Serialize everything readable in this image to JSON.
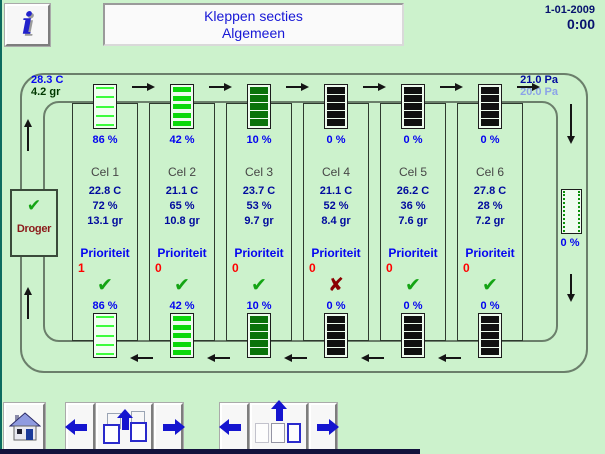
{
  "header": {
    "info_label": "i",
    "title_line1": "Kleppen secties",
    "title_line2": "Algemeen",
    "date": "1-01-2009",
    "time": "0:00"
  },
  "colors": {
    "background": "#ccf2cc",
    "duct_line": "#6b7f6b",
    "label_blue": "#0404f0",
    "value_blue": "#000a9e",
    "pressure_setpoint_blue": "#8ba3e8",
    "priority_red": "#ff0000",
    "ok_green": "#14a414",
    "alarm_red": "#8b0000",
    "dryer_text_red": "#8b1a1a"
  },
  "diagram": {
    "supply": {
      "temp": "28.3 C",
      "moisture": "4.2 gr"
    },
    "pressure": {
      "actual": "21.0 Pa",
      "setpoint": "20.0 Pa"
    },
    "dryer": {
      "label": "Droger",
      "status_icon": "check"
    },
    "bypass_valve": {
      "pct": "0 %"
    },
    "priority_label": "Prioriteit",
    "cells": [
      {
        "name": "Cel 1",
        "temp": "22.8 C",
        "humidity": "72 %",
        "moisture": "13.1 gr",
        "priority": "1",
        "status_icon": "check",
        "valve_pct_top": "86 %",
        "valve_pct_bottom": "86 %",
        "valve_slat_color": "#3dfc3d",
        "valve_slat_height": 2,
        "valve_bg": "#f2fff2"
      },
      {
        "name": "Cel 2",
        "temp": "21.1 C",
        "humidity": "65 %",
        "moisture": "10.8 gr",
        "priority": "0",
        "status_icon": "check",
        "valve_pct_top": "42 %",
        "valve_pct_bottom": "42 %",
        "valve_slat_color": "#0bd80b",
        "valve_slat_height": 5,
        "valve_bg": "#eefbee"
      },
      {
        "name": "Cel 3",
        "temp": "23.7 C",
        "humidity": "53 %",
        "moisture": "9.7 gr",
        "priority": "0",
        "status_icon": "check",
        "valve_pct_top": "10 %",
        "valve_pct_bottom": "10 %",
        "valve_slat_color": "#0a730a",
        "valve_slat_height": 7,
        "valve_bg": "#eefbee"
      },
      {
        "name": "Cel 4",
        "temp": "21.1 C",
        "humidity": "52 %",
        "moisture": "8.4 gr",
        "priority": "0",
        "status_icon": "cross",
        "valve_pct_top": "0 %",
        "valve_pct_bottom": "0 %",
        "valve_slat_color": "#101010",
        "valve_slat_height": 7,
        "valve_bg": "#eefbee"
      },
      {
        "name": "Cel 5",
        "temp": "26.2 C",
        "humidity": "36 %",
        "moisture": "7.6 gr",
        "priority": "0",
        "status_icon": "check",
        "valve_pct_top": "0 %",
        "valve_pct_bottom": "0 %",
        "valve_slat_color": "#101010",
        "valve_slat_height": 7,
        "valve_bg": "#eefbee"
      },
      {
        "name": "Cel 6",
        "temp": "27.8 C",
        "humidity": "28 %",
        "moisture": "7.2 gr",
        "priority": "0",
        "status_icon": "check",
        "valve_pct_top": "0 %",
        "valve_pct_bottom": "0 %",
        "valve_slat_color": "#101010",
        "valve_slat_height": 7,
        "valve_bg": "#eefbee"
      }
    ]
  },
  "footer": {
    "icons": [
      "home-icon",
      "arrow-left-icon",
      "screens-stack-up-icon",
      "arrow-right-icon",
      "arrow-left-icon",
      "sections-row-up-icon",
      "arrow-right-icon"
    ]
  }
}
